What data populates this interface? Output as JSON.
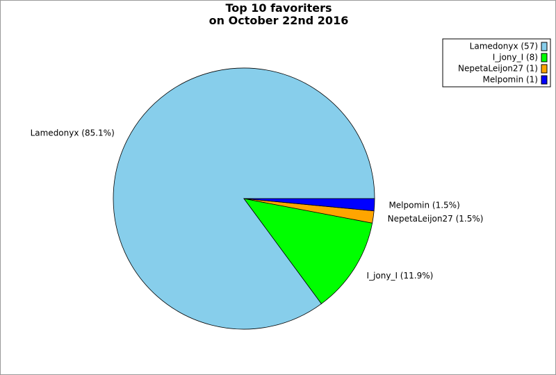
{
  "chart_data": {
    "type": "pie",
    "title": "Top 10 favoriters\non October 22nd 2016",
    "values": [
      85.1,
      11.9,
      1.5,
      1.5
    ],
    "value_labels": [
      "Lamedonyx (85.1%)",
      "I_jony_I (11.9%)",
      "NepetaLeijon27 (1.5%)",
      "Melpomin (1.5%)"
    ],
    "legend": [
      "Lamedonyx (57)",
      "I_jony_I (8)",
      "NepetaLeijon27 (1)",
      "Melpomin (1)"
    ],
    "colors": [
      "#87ceeb",
      "#00ff00",
      "#ffa500",
      "#0000ff"
    ],
    "legend_position": "upper right"
  }
}
